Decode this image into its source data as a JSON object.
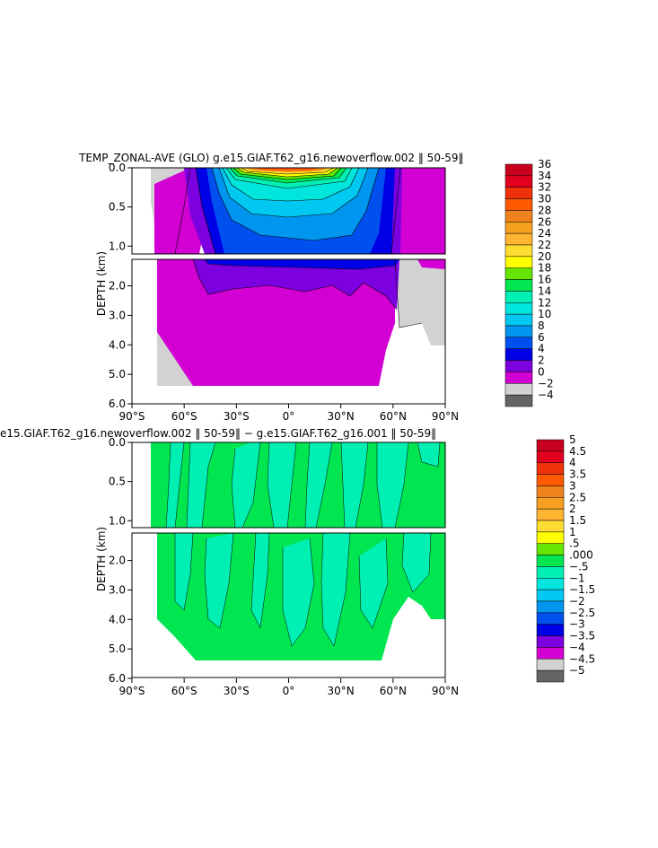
{
  "chart_data": [
    {
      "type": "heatmap",
      "title": "TEMP_ZONAL-AVE (GLO) g.e15.GIAF.T62_g16.newoverflow.002 ‖ 50-59‖",
      "ylabel": "DEPTH (km)",
      "xlabel": "",
      "xlim": [
        -90,
        90
      ],
      "ylim": [
        6.0,
        0.0
      ],
      "x_ticks": [
        "90°S",
        "60°S",
        "30°S",
        "0°",
        "30°N",
        "60°N",
        "90°N"
      ],
      "y_ticks_upper": [
        "0.0",
        "0.5",
        "1.0"
      ],
      "y_ticks_lower": [
        "2.0",
        "3.0",
        "4.0",
        "5.0",
        "6.0"
      ],
      "colorbar": {
        "labels": [
          "36",
          "34",
          "32",
          "30",
          "28",
          "26",
          "24",
          "22",
          "20",
          "18",
          "16",
          "14",
          "12",
          "10",
          "8",
          "6",
          "4",
          "2",
          "0",
          "−2",
          "−4"
        ],
        "colors": [
          "#c8001e",
          "#e1001e",
          "#f0320a",
          "#ff5a00",
          "#f0821e",
          "#f5a01e",
          "#ffb432",
          "#ffdc32",
          "#ffff00",
          "#64e600",
          "#00e650",
          "#00f0b4",
          "#00e6dc",
          "#00c8f0",
          "#0096f0",
          "#0050f0",
          "#0000e6",
          "#7d00e1",
          "#d200d2",
          "#d2d2d2",
          "#646464"
        ]
      }
    },
    {
      "type": "heatmap",
      "title": "e15.GIAF.T62_g16.newoverflow.002 ‖ 50-59‖ − g.e15.GIAF.T62_g16.001 ‖ 50-59‖",
      "ylabel": "DEPTH (km)",
      "xlabel": "",
      "xlim": [
        -90,
        90
      ],
      "ylim": [
        6.0,
        0.0
      ],
      "x_ticks": [
        "90°S",
        "60°S",
        "30°S",
        "0°",
        "30°N",
        "60°N",
        "90°N"
      ],
      "y_ticks_upper": [
        "0.0",
        "0.5",
        "1.0"
      ],
      "y_ticks_lower": [
        "2.0",
        "3.0",
        "4.0",
        "5.0",
        "6.0"
      ],
      "colorbar": {
        "labels": [
          "5",
          "4.5",
          "4",
          "3.5",
          "3",
          "2.5",
          "2",
          "1.5",
          "1",
          ".5",
          ".000",
          "−.5",
          "−1",
          "−1.5",
          "−2",
          "−2.5",
          "−3",
          "−3.5",
          "−4",
          "−4.5",
          "−5"
        ],
        "colors": [
          "#c8001e",
          "#e1001e",
          "#f0320a",
          "#ff5a00",
          "#f0821e",
          "#f5a01e",
          "#ffb432",
          "#ffdc32",
          "#ffff00",
          "#64e600",
          "#00e650",
          "#00f0b4",
          "#00e6dc",
          "#00c8f0",
          "#0096f0",
          "#0050f0",
          "#0000e6",
          "#7d00e1",
          "#d200d2",
          "#d2d2d2",
          "#646464"
        ]
      }
    }
  ]
}
